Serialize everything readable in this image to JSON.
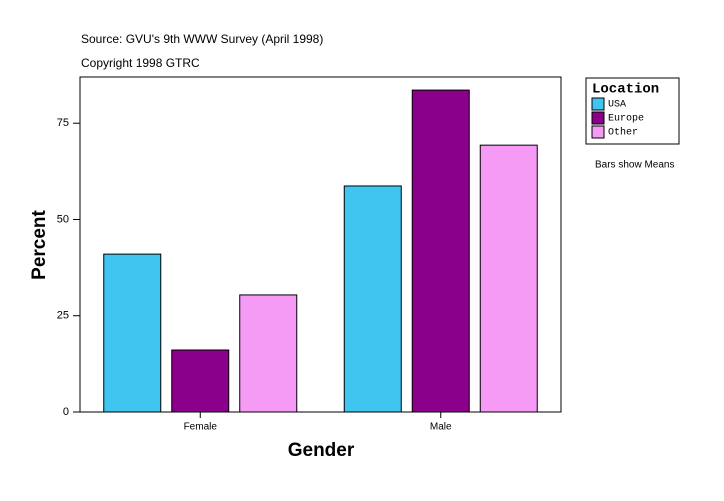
{
  "chart_data": {
    "type": "bar",
    "source": "Source: GVU's 9th WWW Survey (April 1998)",
    "copyright": "Copyright 1998 GTRC",
    "note": "Bars show Means",
    "x_label": "Gender",
    "y_label": "Percent",
    "legend_title": "Location",
    "categories": [
      "Female",
      "Male"
    ],
    "series": [
      {
        "name": "USA",
        "color": "#40c4f0",
        "values": [
          41.0,
          58.7
        ]
      },
      {
        "name": "Europe",
        "color": "#8b008b",
        "values": [
          16.1,
          83.6
        ]
      },
      {
        "name": "Other",
        "color": "#f59af5",
        "values": [
          30.4,
          69.3
        ]
      }
    ],
    "ylim": [
      0,
      87
    ],
    "yticks": [
      0,
      25,
      50,
      75
    ],
    "grid": false,
    "legend": "right"
  }
}
